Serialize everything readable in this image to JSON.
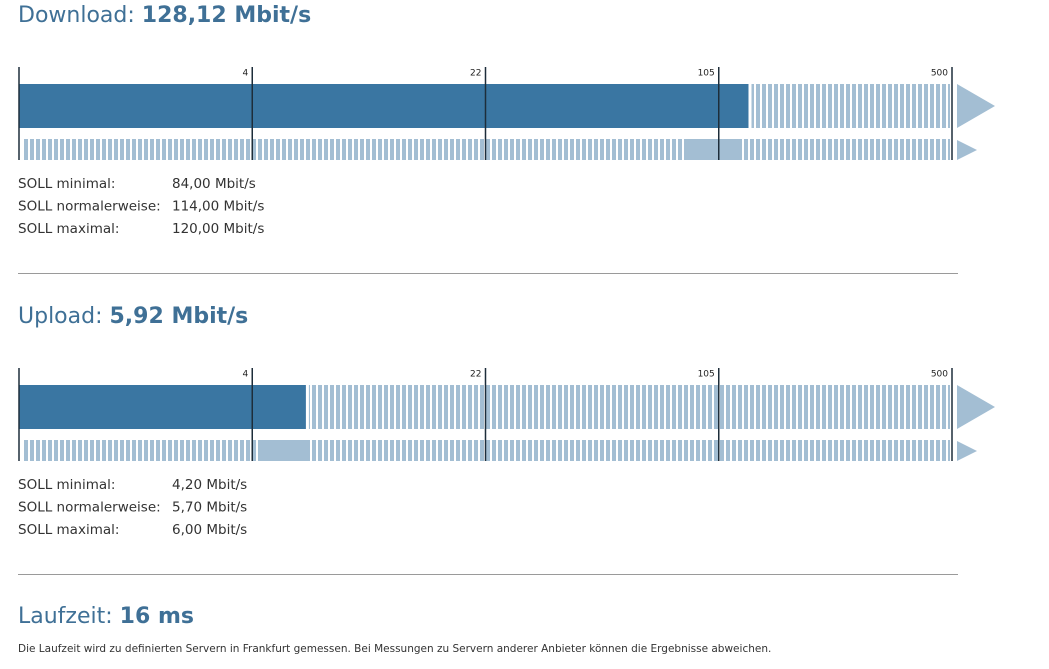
{
  "sections": [
    {
      "key": "download",
      "title": "Download:",
      "value": 128.12,
      "value_label": "128,12 Mbit/s",
      "scale": {
        "xlim": [
          1,
          500
        ],
        "ticks": [
          4,
          22,
          105,
          500
        ]
      },
      "soll": [
        {
          "label": "SOLL minimal:",
          "value": 84,
          "value_label": "84,00 Mbit/s"
        },
        {
          "label": "SOLL normalerweise:",
          "value": 114,
          "value_label": "114,00 Mbit/s"
        },
        {
          "label": "SOLL maximal:",
          "value": 120,
          "value_label": "120,00 Mbit/s"
        }
      ]
    },
    {
      "key": "upload",
      "title": "Upload:",
      "value": 5.92,
      "value_label": "5,92 Mbit/s",
      "scale": {
        "xlim": [
          1,
          500
        ],
        "ticks": [
          4,
          22,
          105,
          500
        ]
      },
      "soll": [
        {
          "label": "SOLL minimal:",
          "value": 4.2,
          "value_label": "4,20 Mbit/s"
        },
        {
          "label": "SOLL normalerweise:",
          "value": 5.7,
          "value_label": "5,70 Mbit/s"
        },
        {
          "label": "SOLL maximal:",
          "value": 6,
          "value_label": "6,00 Mbit/s"
        }
      ]
    }
  ],
  "latency": {
    "title": "Laufzeit:",
    "value_label": "16 ms",
    "note": "Die Laufzeit wird zu definierten Servern in Frankfurt gemessen. Bei Messungen zu Servern anderer Anbieter können die Ergebnisse abweichen."
  }
}
